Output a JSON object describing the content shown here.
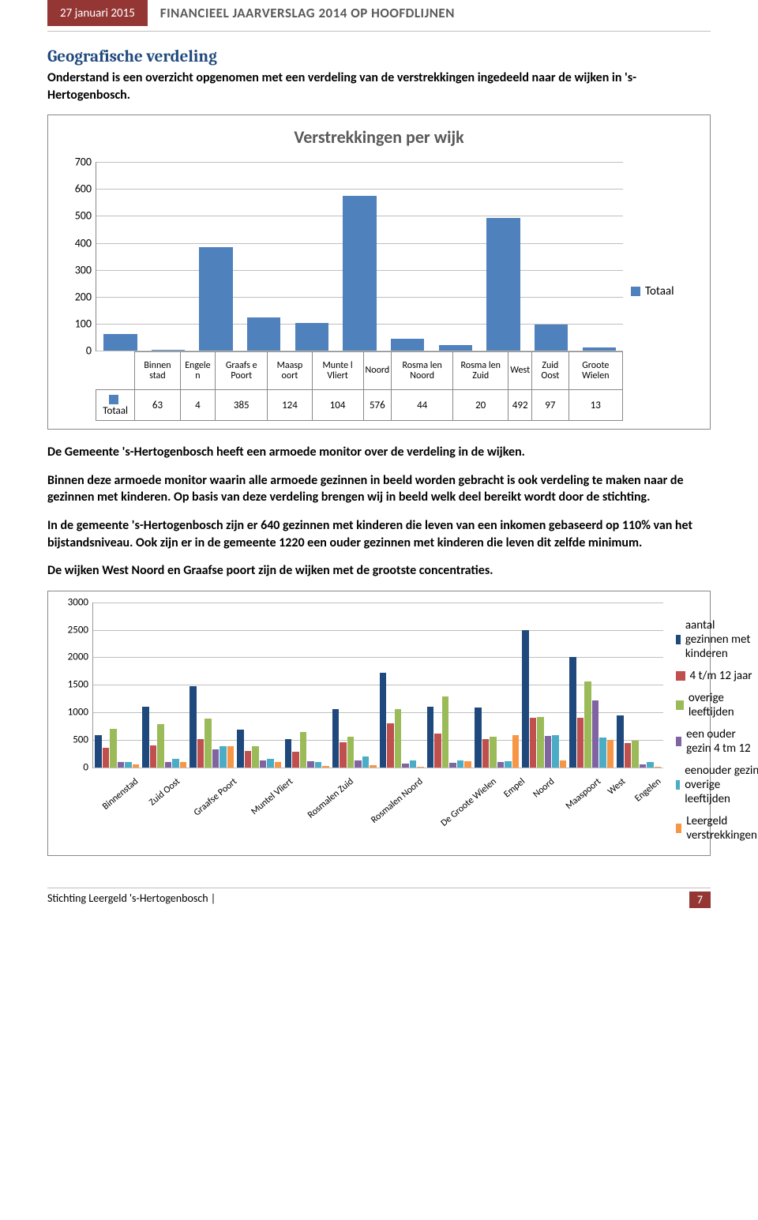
{
  "header": {
    "date": "27 januari 2015",
    "title": "FINANCIEEL JAARVERSLAG 2014 OP HOOFDLIJNEN"
  },
  "section": {
    "title": "Geografische verdeling",
    "intro": "Onderstand is een overzicht opgenomen met een verdeling van de verstrekkingen ingedeeld naar de wijken in 's-Hertogenbosch."
  },
  "chart1": {
    "type": "bar",
    "title": "Verstrekkingen per wijk",
    "legend_label": "Totaal",
    "bar_color": "#4f81bd",
    "grid_color": "#bfbfbf",
    "ylim": [
      0,
      700
    ],
    "ytick_step": 100,
    "row_label": "Totaal",
    "categories": [
      "Binnen stad",
      "Engele n",
      "Graafs e Poort",
      "Maasp oort",
      "Munte l Vliert",
      "Noord",
      "Rosma len Noord",
      "Rosma len Zuid",
      "West",
      "Zuid Oost",
      "Groote Wielen"
    ],
    "values": [
      63,
      4,
      385,
      124,
      104,
      576,
      44,
      20,
      492,
      97,
      13
    ]
  },
  "paras": [
    "De Gemeente 's-Hertogenbosch heeft een armoede monitor over de verdeling in de wijken.",
    "Binnen deze armoede monitor waarin alle armoede gezinnen in beeld worden gebracht is ook verdeling te maken naar de gezinnen met kinderen. Op basis van deze verdeling brengen wij in beeld welk deel bereikt wordt door de stichting.",
    "In de gemeente 's-Hertogenbosch zijn er 640 gezinnen met kinderen die leven van een inkomen gebaseerd op 110% van het bijstandsniveau. Ook zijn er in de gemeente 1220 een ouder gezinnen met kinderen die leven dit zelfde minimum.",
    "De wijken West Noord en Graafse poort zijn de wijken met de grootste concentraties."
  ],
  "chart2": {
    "type": "grouped-bar",
    "ylim": [
      0,
      3000
    ],
    "ytick_step": 500,
    "grid_color": "#bfbfbf",
    "categories": [
      "Binnenstad",
      "Zuid Oost",
      "Graafse Poort",
      "Muntel Vliert",
      "Rosmalen Zuid",
      "Rosmalen Noord",
      "De Groote Wielen",
      "Empel",
      "Noord",
      "Maaspoort",
      "West",
      "Engelen"
    ],
    "series": [
      {
        "name": "aantal gezinnen met kinderen",
        "color": "#1f497d"
      },
      {
        "name": "4 t/m 12 jaar",
        "color": "#c0504d"
      },
      {
        "name": "overige leeftijden",
        "color": "#9bbb59"
      },
      {
        "name": "een ouder gezin 4 tm 12",
        "color": "#8064a2"
      },
      {
        "name": "eenouder gezin overige leeftijden",
        "color": "#4bacc6"
      },
      {
        "name": "Leergeld verstrekkingen",
        "color": "#f79646"
      }
    ],
    "data": [
      [
        580,
        350,
        700,
        100,
        100,
        60
      ],
      [
        1100,
        400,
        780,
        100,
        160,
        100
      ],
      [
        1480,
        510,
        890,
        320,
        380,
        380
      ],
      [
        680,
        300,
        380,
        120,
        160,
        100
      ],
      [
        520,
        280,
        640,
        110,
        100,
        20
      ],
      [
        1060,
        450,
        550,
        130,
        200,
        45
      ],
      [
        1720,
        800,
        1060,
        70,
        120,
        15
      ],
      [
        1100,
        620,
        1290,
        80,
        120,
        105
      ],
      [
        1090,
        520,
        560,
        90,
        105,
        580
      ],
      [
        2500,
        900,
        920,
        570,
        590,
        130
      ],
      [
        2000,
        900,
        1560,
        1220,
        540,
        500
      ],
      [
        950,
        440,
        480,
        60,
        100,
        5
      ]
    ]
  },
  "footer": {
    "org": "Stichting Leergeld 's-Hertogenbosch |",
    "page": "7"
  }
}
